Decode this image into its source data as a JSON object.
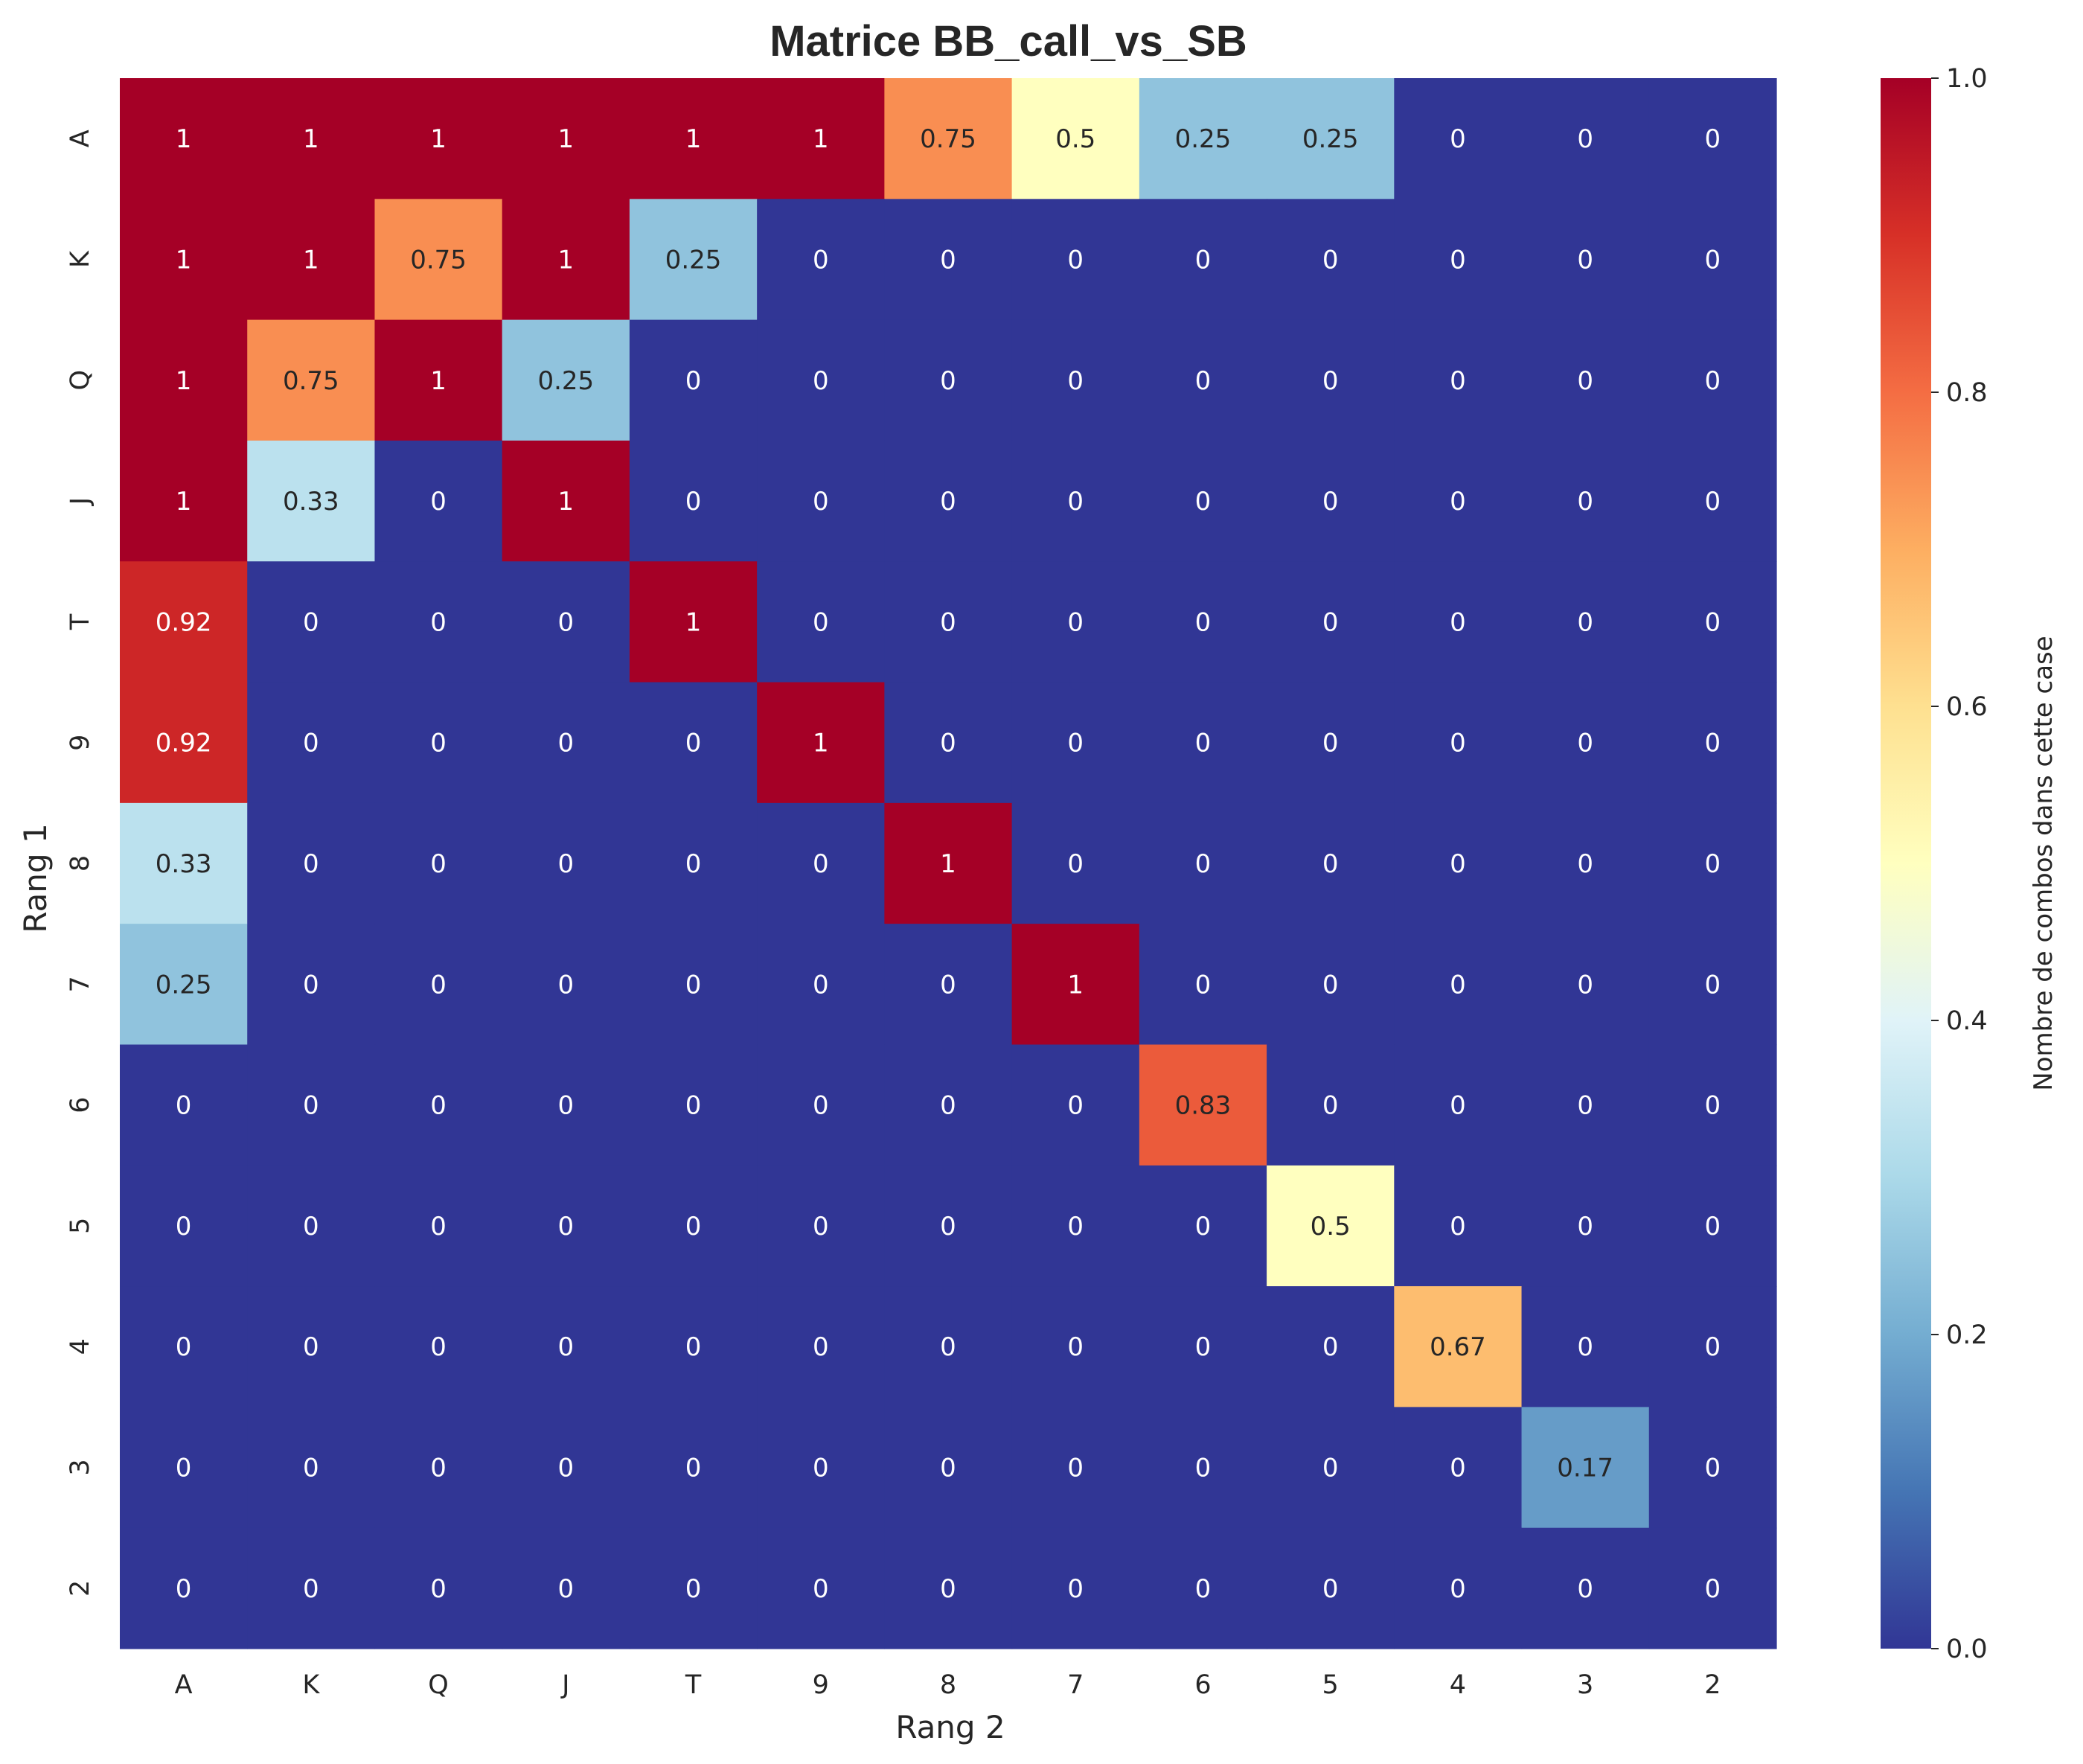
{
  "chart_data": {
    "type": "heatmap",
    "title": "Matrice BB_call_vs_SB",
    "xlabel": "Rang 2",
    "ylabel": "Rang 1",
    "x_categories": [
      "A",
      "K",
      "Q",
      "J",
      "T",
      "9",
      "8",
      "7",
      "6",
      "5",
      "4",
      "3",
      "2"
    ],
    "y_categories": [
      "A",
      "K",
      "Q",
      "J",
      "T",
      "9",
      "8",
      "7",
      "6",
      "5",
      "4",
      "3",
      "2"
    ],
    "values": [
      [
        1,
        1,
        1,
        1,
        1,
        1,
        0.75,
        0.5,
        0.25,
        0.25,
        0,
        0,
        0
      ],
      [
        1,
        1,
        0.75,
        1,
        0.25,
        0,
        0,
        0,
        0,
        0,
        0,
        0,
        0
      ],
      [
        1,
        0.75,
        1,
        0.25,
        0,
        0,
        0,
        0,
        0,
        0,
        0,
        0,
        0
      ],
      [
        1,
        0.33,
        0,
        1,
        0,
        0,
        0,
        0,
        0,
        0,
        0,
        0,
        0
      ],
      [
        0.92,
        0,
        0,
        0,
        1,
        0,
        0,
        0,
        0,
        0,
        0,
        0,
        0
      ],
      [
        0.92,
        0,
        0,
        0,
        0,
        1,
        0,
        0,
        0,
        0,
        0,
        0,
        0
      ],
      [
        0.33,
        0,
        0,
        0,
        0,
        0,
        1,
        0,
        0,
        0,
        0,
        0,
        0
      ],
      [
        0.25,
        0,
        0,
        0,
        0,
        0,
        0,
        1,
        0,
        0,
        0,
        0,
        0
      ],
      [
        0,
        0,
        0,
        0,
        0,
        0,
        0,
        0,
        0.83,
        0,
        0,
        0,
        0
      ],
      [
        0,
        0,
        0,
        0,
        0,
        0,
        0,
        0,
        0,
        0.5,
        0,
        0,
        0
      ],
      [
        0,
        0,
        0,
        0,
        0,
        0,
        0,
        0,
        0,
        0,
        0.67,
        0,
        0
      ],
      [
        0,
        0,
        0,
        0,
        0,
        0,
        0,
        0,
        0,
        0,
        0,
        0.17,
        0
      ],
      [
        0,
        0,
        0,
        0,
        0,
        0,
        0,
        0,
        0,
        0,
        0,
        0,
        0
      ]
    ],
    "colormap": "RdYlBu_r",
    "vmin": 0,
    "vmax": 1,
    "colorbar": {
      "label": "Nombre de combos dans cette case",
      "ticks": [
        "0.0",
        "0.2",
        "0.4",
        "0.6",
        "0.8",
        "1.0"
      ]
    },
    "grid": false,
    "annotations": true
  }
}
